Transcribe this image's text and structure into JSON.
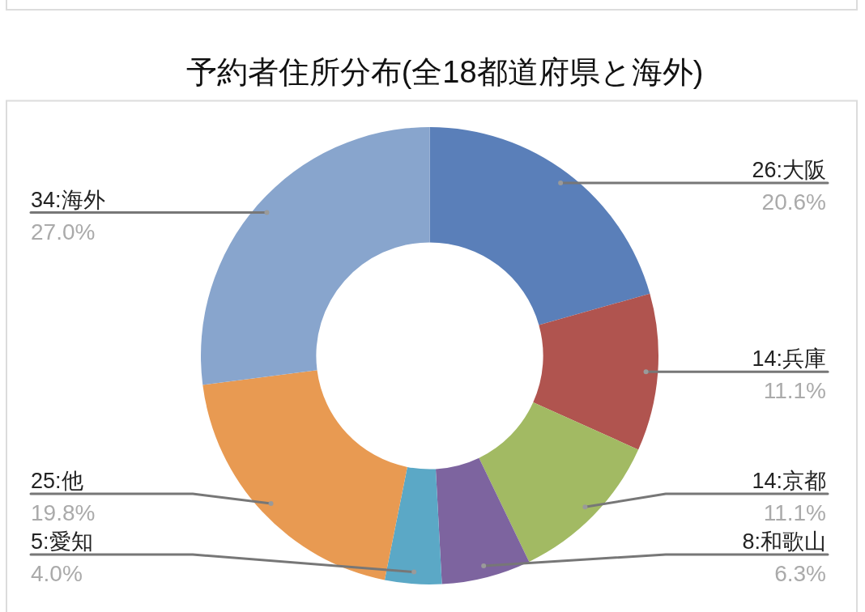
{
  "chart_data": {
    "type": "donut",
    "title": "予約者住所分布(全18都道府県と海外)",
    "categories": [
      "26:大阪",
      "14:兵庫",
      "14:京都",
      "8:和歌山",
      "5:愛知",
      "25:他",
      "34:海外"
    ],
    "values": [
      20.6,
      11.1,
      11.1,
      6.3,
      4.0,
      19.8,
      27.0
    ],
    "colors": [
      "#5a7fb9",
      "#b0544f",
      "#a2ba63",
      "#7d649f",
      "#5ba8c6",
      "#e89a52",
      "#88a5cd"
    ],
    "value_labels": [
      "20.6%",
      "11.1%",
      "11.1%",
      "6.3%",
      "4.0%",
      "19.8%",
      "27.0%"
    ]
  }
}
